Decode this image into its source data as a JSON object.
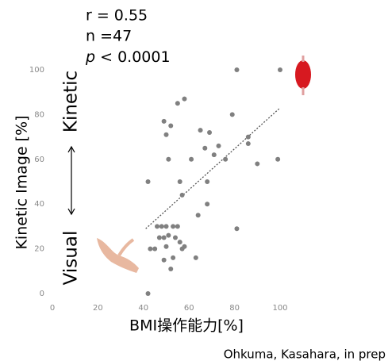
{
  "chart_data": {
    "type": "scatter",
    "stats": {
      "r": "r = 0.55",
      "n": "n =47",
      "p_symbol": "p",
      "p_text": "< 0.0001"
    },
    "y_label": "Kinetic Image [%]",
    "y_low_label": "Visual",
    "y_high_label": "Kinetic",
    "x_label": "BMI操作能力[%]",
    "credit": "Ohkuma, Kasahara, in prep",
    "color": "#808080",
    "xlim": [
      0,
      100
    ],
    "xticks": [
      0,
      20,
      40,
      60,
      80,
      100
    ],
    "ylim": [
      0,
      100
    ],
    "yticks": [
      0,
      20,
      40,
      60,
      80,
      100
    ],
    "x": [
      100,
      81,
      58,
      55,
      79,
      49,
      52,
      50,
      65,
      69,
      86,
      73,
      67,
      86,
      71,
      76,
      51,
      61,
      90,
      99,
      42,
      56,
      68,
      57,
      68,
      64,
      81,
      46,
      48,
      50,
      53,
      55,
      47,
      49,
      51,
      54,
      56,
      43,
      45,
      58,
      49,
      53,
      63,
      57,
      52,
      42,
      50
    ],
    "y": [
      100,
      100,
      87,
      85,
      80,
      77,
      75,
      71,
      73,
      72,
      70,
      66,
      65,
      67,
      62,
      60,
      60,
      60,
      58,
      60,
      50,
      50,
      50,
      44,
      40,
      35,
      29,
      30,
      30,
      30,
      30,
      30,
      25,
      25,
      26,
      25,
      23,
      20,
      20,
      21,
      15,
      16,
      16,
      20,
      11,
      0,
      21
    ],
    "trendline": {
      "x": [
        41,
        100
      ],
      "y": [
        29,
        83
      ]
    }
  }
}
